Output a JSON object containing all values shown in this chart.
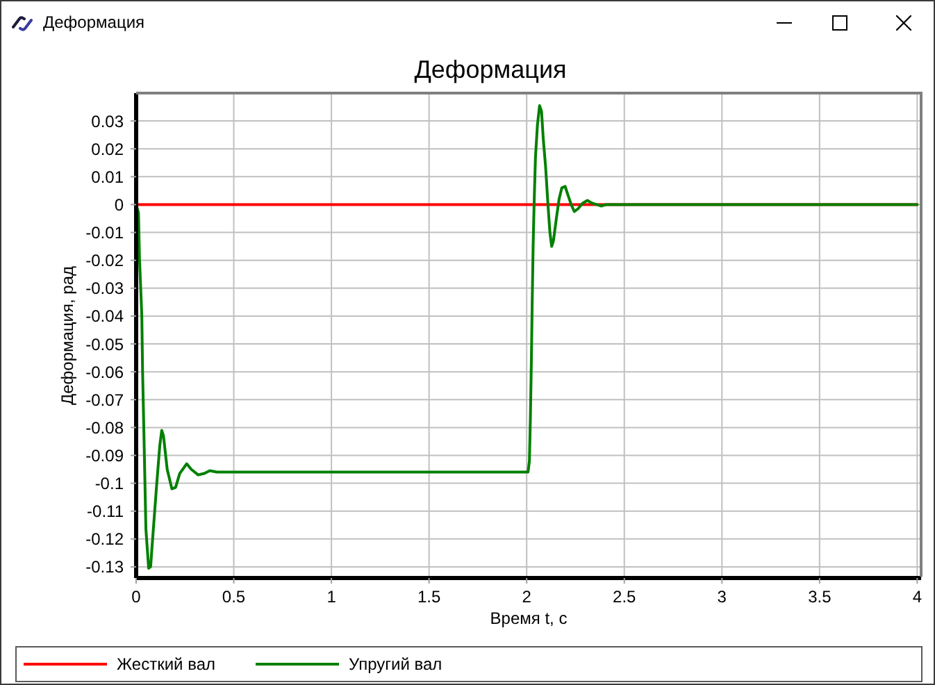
{
  "chart_data": {
    "type": "line",
    "title": "Деформация",
    "xlabel": "Время t, с",
    "ylabel": "Деформация, рад",
    "annotations": [
      "Деформация"
    ],
    "series": [
      {
        "name": "Жесткий вал",
        "color": "#ff0000",
        "x": [
          0,
          4
        ],
        "values": [
          0,
          0
        ]
      },
      {
        "name": "Упругий вал",
        "color": "#008000",
        "x": [
          0,
          0.012,
          0.017,
          0.029,
          0.033,
          0.04,
          0.05,
          0.064,
          0.074,
          0.088,
          0.104,
          0.121,
          0.131,
          0.14,
          0.159,
          0.183,
          0.202,
          0.223,
          0.259,
          0.282,
          0.318,
          0.349,
          0.377,
          0.413,
          2.007,
          2.014,
          2.019,
          2.024,
          2.028,
          2.033,
          2.038,
          2.045,
          2.055,
          2.066,
          2.076,
          2.085,
          2.097,
          2.109,
          2.119,
          2.128,
          2.137,
          2.152,
          2.166,
          2.18,
          2.197,
          2.211,
          2.228,
          2.244,
          2.263,
          2.287,
          2.311,
          2.335,
          2.358,
          2.382,
          2.406,
          4
        ],
        "values": [
          0,
          -0.003,
          -0.019,
          -0.04,
          -0.06,
          -0.083,
          -0.1165,
          -0.1305,
          -0.13,
          -0.1165,
          -0.1015,
          -0.0865,
          -0.081,
          -0.083,
          -0.095,
          -0.102,
          -0.1015,
          -0.0965,
          -0.093,
          -0.095,
          -0.097,
          -0.0965,
          -0.0955,
          -0.096,
          -0.096,
          -0.092,
          -0.0765,
          -0.0565,
          -0.0365,
          -0.015,
          0,
          0.017,
          0.0285,
          0.0355,
          0.0335,
          0.0235,
          0.0135,
          0,
          -0.01,
          -0.015,
          -0.013,
          -0.005,
          0.002,
          0.006,
          0.0065,
          0.0035,
          0,
          -0.0025,
          -0.0015,
          0.0005,
          0.0015,
          0.0005,
          0,
          -0.0005,
          0,
          0
        ]
      }
    ],
    "xlim": [
      0,
      4.02
    ],
    "ylim": [
      -0.134,
      0.04
    ],
    "xticks": [
      0,
      0.5,
      1,
      1.5,
      2,
      2.5,
      3,
      3.5,
      4
    ],
    "yticks": [
      0.03,
      0.02,
      0.01,
      0,
      -0.01,
      -0.02,
      -0.03,
      -0.04,
      -0.05,
      -0.06,
      -0.07,
      -0.08,
      -0.09,
      -0.1,
      -0.11,
      -0.12,
      -0.13
    ],
    "grid": true,
    "legend": "bottom",
    "marker": "none",
    "line_style": "solid"
  }
}
